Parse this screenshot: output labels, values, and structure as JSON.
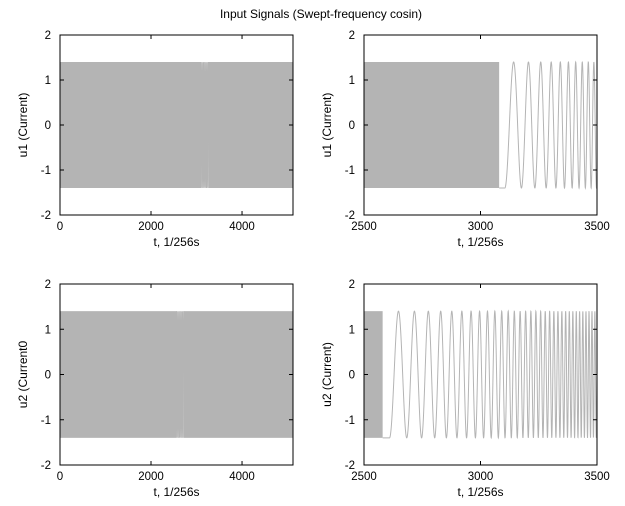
{
  "figure": {
    "title": "Input Signals (Swept-frequency cosin)"
  },
  "chart_data": [
    {
      "type": "line",
      "panel": "top-left",
      "xlabel": "t,  1/256s",
      "ylabel": "u1 (Current)",
      "xlim": [
        0,
        5120
      ],
      "ylim": [
        -2,
        2
      ],
      "xticks": [
        0,
        2000,
        4000
      ],
      "yticks": [
        -2,
        -1,
        0,
        1,
        2
      ],
      "grid": false,
      "series": [
        {
          "color": "#b4b4b4",
          "amplitude": 1.4,
          "dense_bands": [
            [
              0,
              3100
            ],
            [
              3260,
              5120
            ]
          ],
          "slow_segment": [
            3100,
            3260
          ]
        }
      ]
    },
    {
      "type": "line",
      "panel": "top-right",
      "xlabel": "t,  1/256s",
      "ylabel": "u1 (Current)",
      "xlim": [
        2500,
        3500
      ],
      "ylim": [
        -2,
        2
      ],
      "xticks": [
        2500,
        3000,
        3500
      ],
      "yticks": [
        -2,
        -1,
        0,
        1,
        2
      ],
      "grid": false,
      "series": [
        {
          "color": "#b4b4b4",
          "amplitude": 1.4,
          "dense_bands": [
            [
              2500,
              3080
            ]
          ],
          "slow_segment": [
            3080,
            3500
          ],
          "min_at": 3080,
          "sweep_start": 3105,
          "period_start": 80,
          "period_end": 22
        }
      ]
    },
    {
      "type": "line",
      "panel": "bottom-left",
      "xlabel": "t,  1/256s",
      "ylabel": "u2 (Current0",
      "xlim": [
        0,
        5120
      ],
      "ylim": [
        -2,
        2
      ],
      "xticks": [
        0,
        2000,
        4000
      ],
      "yticks": [
        -2,
        -1,
        0,
        1,
        2
      ],
      "grid": false,
      "series": [
        {
          "color": "#b4b4b4",
          "amplitude": 1.4,
          "dense_bands": [
            [
              0,
              2560
            ],
            [
              2720,
              5120
            ]
          ],
          "slow_segment": [
            2560,
            2720
          ]
        }
      ]
    },
    {
      "type": "line",
      "panel": "bottom-right",
      "xlabel": "t,  1/256s",
      "ylabel": "u2 (Current)",
      "xlim": [
        2500,
        3500
      ],
      "ylim": [
        -2,
        2
      ],
      "xticks": [
        2500,
        3000,
        3500
      ],
      "yticks": [
        -2,
        -1,
        0,
        1,
        2
      ],
      "grid": false,
      "series": [
        {
          "color": "#b4b4b4",
          "amplitude": 1.4,
          "dense_bands": [
            [
              2500,
              2580
            ]
          ],
          "slow_segment": [
            2580,
            3500
          ],
          "min_at": 2580,
          "sweep_start": 2610,
          "period_start": 80,
          "period_end": 12
        }
      ]
    }
  ]
}
